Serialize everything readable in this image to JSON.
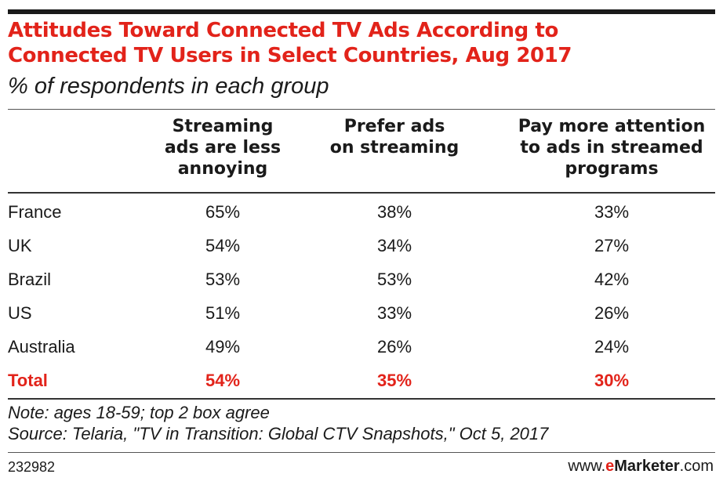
{
  "chart_data": {
    "type": "table",
    "title": [
      "Attitudes Toward Connected TV Ads According to",
      "Connected TV Users in Select Countries, Aug 2017"
    ],
    "subtitle": "% of respondents in each group",
    "columns": [
      {
        "lines": [
          "Streaming",
          "ads are less",
          "annoying"
        ]
      },
      {
        "lines": [
          "Prefer ads",
          "on streaming"
        ]
      },
      {
        "lines": [
          "Pay more attention",
          "to ads in streamed",
          "programs"
        ]
      }
    ],
    "rows": [
      {
        "label": "France",
        "values": [
          "65%",
          "38%",
          "33%"
        ]
      },
      {
        "label": "UK",
        "values": [
          "54%",
          "34%",
          "27%"
        ]
      },
      {
        "label": "Brazil",
        "values": [
          "53%",
          "53%",
          "42%"
        ]
      },
      {
        "label": "US",
        "values": [
          "51%",
          "33%",
          "26%"
        ]
      },
      {
        "label": "Australia",
        "values": [
          "49%",
          "26%",
          "24%"
        ]
      }
    ],
    "total": {
      "label": "Total",
      "values": [
        "54%",
        "35%",
        "30%"
      ]
    },
    "notes": [
      "Note: ages 18-59; top 2 box agree",
      "Source: Telaria, \"TV in Transition: Global CTV Snapshots,\" Oct 5, 2017"
    ]
  },
  "footer": {
    "chart_id": "232982",
    "brand_prefix": "www.",
    "brand_e": "e",
    "brand_name": "Marketer",
    "brand_suffix": ".com"
  },
  "colors": {
    "accent": "#e2231a",
    "text": "#1a1a1a"
  }
}
